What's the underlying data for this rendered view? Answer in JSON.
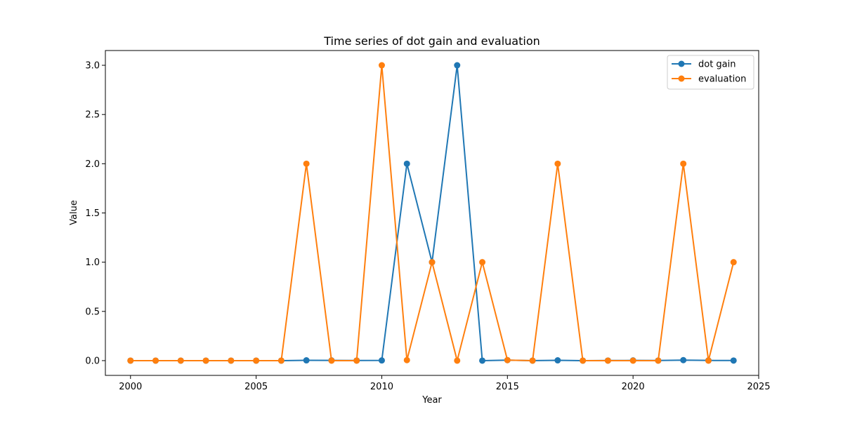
{
  "chart_data": {
    "type": "line",
    "title": "Time series of dot gain and evaluation",
    "xlabel": "Year",
    "ylabel": "Value",
    "xlim": [
      1999,
      2025
    ],
    "ylim": [
      -0.15,
      3.15
    ],
    "xticks": [
      2000,
      2005,
      2010,
      2015,
      2020,
      2025
    ],
    "yticks": [
      0.0,
      0.5,
      1.0,
      1.5,
      2.0,
      2.5,
      3.0
    ],
    "grid": false,
    "legend_position": "top-right",
    "x": [
      2000,
      2001,
      2002,
      2003,
      2004,
      2005,
      2006,
      2007,
      2008,
      2009,
      2010,
      2011,
      2012,
      2013,
      2014,
      2015,
      2016,
      2017,
      2018,
      2019,
      2020,
      2021,
      2022,
      2023,
      2024
    ],
    "series": [
      {
        "name": "dot gain",
        "color": "#1f77b4",
        "values": [
          0.0,
          0.0,
          0.0,
          0.0,
          0.0,
          0.0,
          0.0,
          0.003,
          0.002,
          0.001,
          0.002,
          2.0,
          1.0,
          3.0,
          0.0,
          0.005,
          0.0,
          0.003,
          0.0,
          0.001,
          0.002,
          0.001,
          0.005,
          0.002,
          0.001
        ]
      },
      {
        "name": "evaluation",
        "color": "#ff7f0e",
        "values": [
          0.0,
          0.0,
          0.0,
          0.0,
          0.0,
          0.0,
          0.0,
          2.0,
          0.0,
          0.0,
          3.0,
          0.005,
          1.0,
          0.0,
          1.0,
          0.005,
          0.0,
          2.0,
          0.0,
          0.0,
          0.0,
          0.0,
          2.0,
          0.0,
          1.0
        ]
      }
    ]
  }
}
